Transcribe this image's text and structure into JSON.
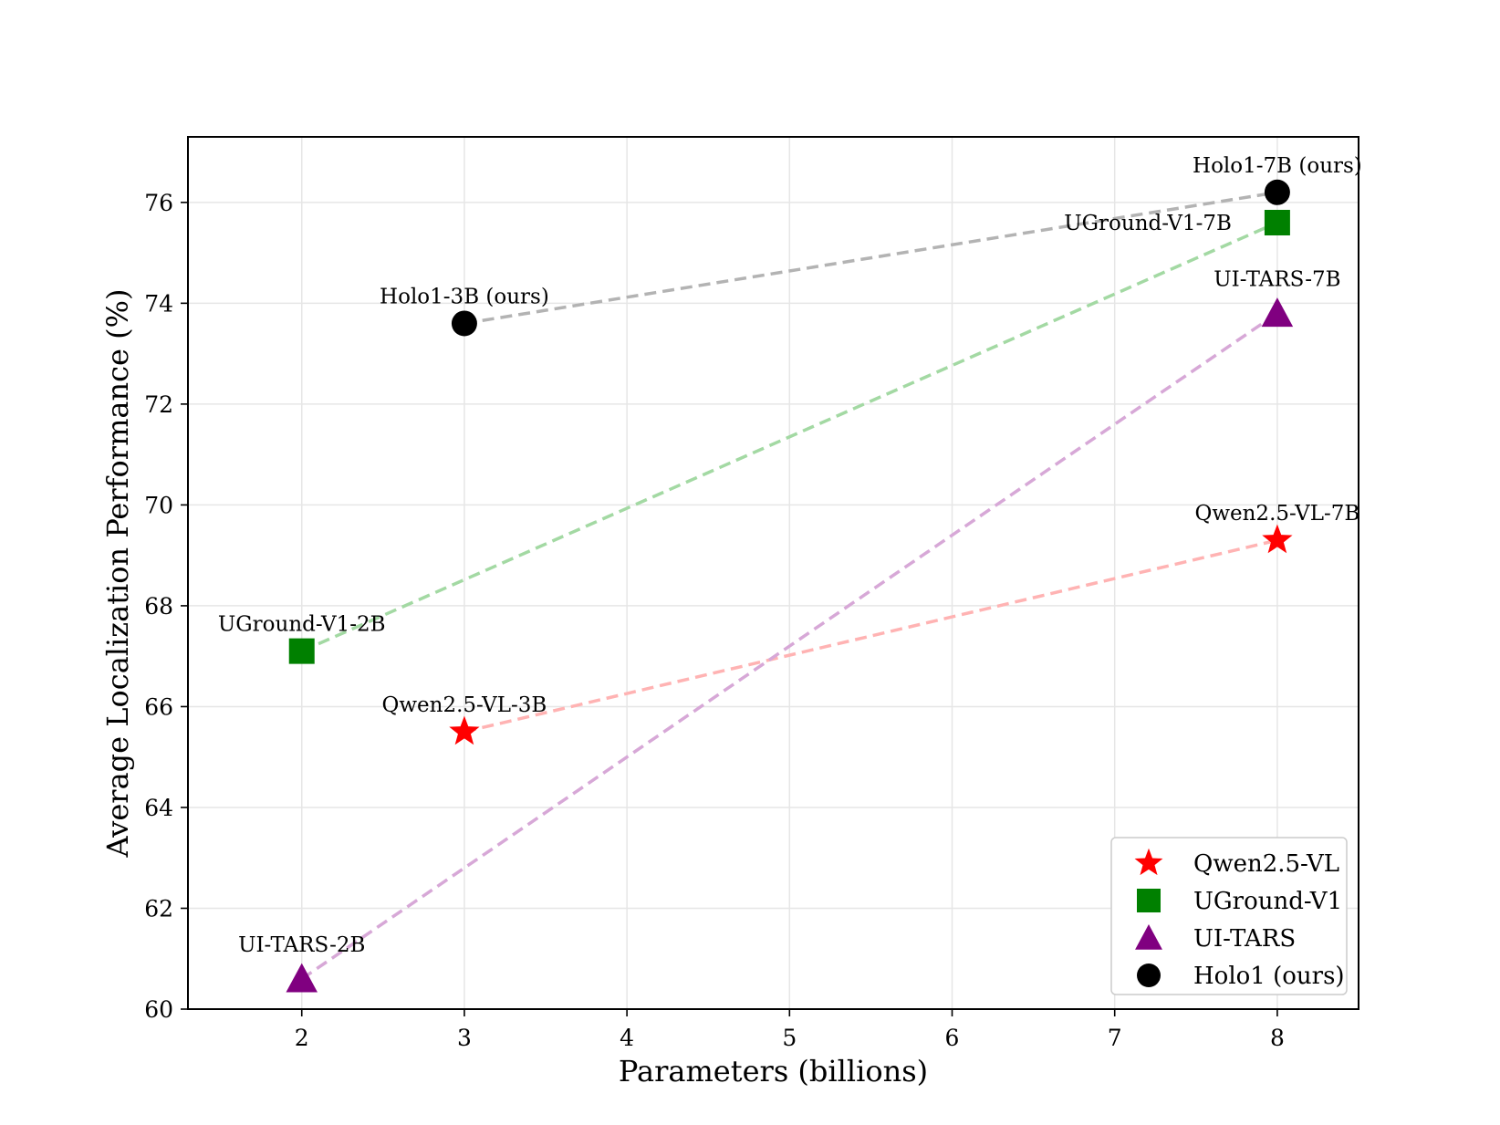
{
  "chart_data": {
    "type": "scatter",
    "title": "",
    "xlabel": "Parameters (billions)",
    "ylabel": "Average Localization Performance (%)",
    "xlim": [
      1.3,
      8.5
    ],
    "ylim": [
      60,
      77.3
    ],
    "xticks": [
      2,
      3,
      4,
      5,
      6,
      7,
      8
    ],
    "yticks": [
      60,
      62,
      64,
      66,
      68,
      70,
      72,
      74,
      76
    ],
    "grid": true,
    "legend_position": "bottom-right",
    "series": [
      {
        "name": "Qwen2.5-VL",
        "marker": "star",
        "color": "#ff0000",
        "line_color": "#ffb3b3",
        "points": [
          {
            "x": 3,
            "y": 65.5,
            "label": "Qwen2.5-VL-3B"
          },
          {
            "x": 8,
            "y": 69.3,
            "label": "Qwen2.5-VL-7B"
          }
        ]
      },
      {
        "name": "UGround-V1",
        "marker": "square",
        "color": "#008000",
        "line_color": "#a3d9a3",
        "points": [
          {
            "x": 2,
            "y": 67.1,
            "label": "UGround-V1-2B"
          },
          {
            "x": 8,
            "y": 75.6,
            "label": "UGround-V1-7B"
          }
        ]
      },
      {
        "name": "UI-TARS",
        "marker": "triangle",
        "color": "#800080",
        "line_color": "#d7a8d7",
        "points": [
          {
            "x": 2,
            "y": 60.6,
            "label": "UI-TARS-2B"
          },
          {
            "x": 8,
            "y": 73.8,
            "label": "UI-TARS-7B"
          }
        ]
      },
      {
        "name": "Holo1 (ours)",
        "marker": "circle",
        "color": "#000000",
        "line_color": "#b3b3b3",
        "points": [
          {
            "x": 3,
            "y": 73.6,
            "label": "Holo1-3B (ours)"
          },
          {
            "x": 8,
            "y": 76.2,
            "label": "Holo1-7B (ours)"
          }
        ]
      }
    ]
  }
}
